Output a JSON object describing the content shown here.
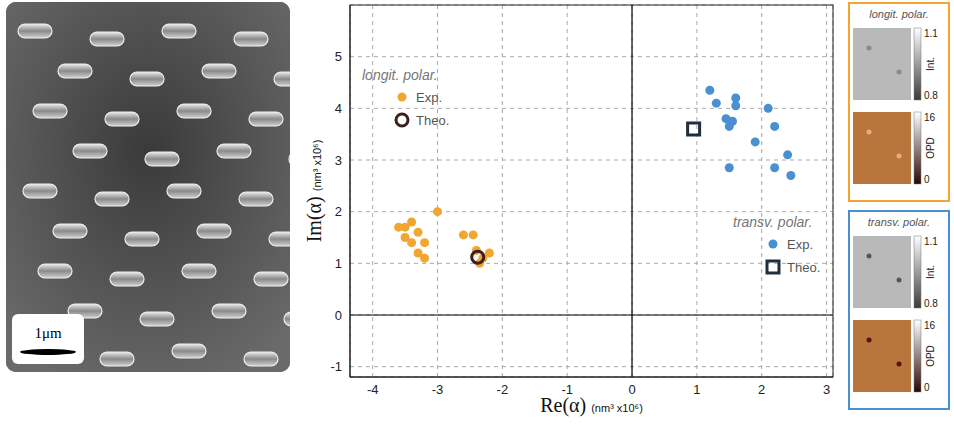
{
  "chart_data": {
    "type": "scatter",
    "x_label": "Re(α)",
    "x_unit": "(nm³ x10⁶)",
    "y_label": "Im(α)",
    "y_unit": "(nm³ x10⁶)",
    "xlim": [
      -4.35,
      3.1
    ],
    "xticks": [
      -4,
      -3,
      -2,
      -1,
      0,
      1,
      2,
      3
    ],
    "ylim": [
      -1.2,
      6
    ],
    "yticks": [
      -1,
      0,
      1,
      2,
      3,
      4,
      5
    ],
    "grid": true,
    "reference_lines": {
      "x": 0,
      "y": 0
    },
    "groups": [
      {
        "name": "longit. polar.",
        "legend": "upper left"
      },
      {
        "name": "transv. polar.",
        "legend": "lower right"
      }
    ],
    "series": [
      {
        "name": "Exp.",
        "group": "longit. polar.",
        "color": "#f0a630",
        "marker": "circle",
        "x": [
          -3.6,
          -3.5,
          -3.4,
          -3.3,
          -3.5,
          -3.4,
          -3.2,
          -3.3,
          -3.2,
          -3.0,
          -2.6,
          -2.45,
          -2.4,
          -2.2,
          -2.3,
          -2.35
        ],
        "y": [
          1.7,
          1.7,
          1.8,
          1.6,
          1.5,
          1.4,
          1.4,
          1.2,
          1.1,
          2.0,
          1.55,
          1.55,
          1.25,
          1.2,
          1.1,
          1.0
        ]
      },
      {
        "name": "Theo.",
        "group": "longit. polar.",
        "color": "#3b1f1c",
        "marker": "open_circle",
        "x": [
          -2.38
        ],
        "y": [
          1.12
        ]
      },
      {
        "name": "Exp.",
        "group": "transv. polar.",
        "color": "#4a90d0",
        "marker": "circle",
        "x": [
          1.2,
          1.3,
          1.6,
          1.6,
          1.45,
          1.55,
          1.5,
          2.1,
          2.2,
          1.9,
          1.5,
          2.2,
          2.4,
          2.45
        ],
        "y": [
          4.35,
          4.1,
          4.2,
          4.05,
          3.8,
          3.75,
          3.65,
          4.0,
          3.65,
          3.35,
          2.85,
          2.85,
          3.1,
          2.7
        ]
      },
      {
        "name": "Theo.",
        "group": "transv. polar.",
        "color": "#1f2f3f",
        "marker": "open_square",
        "x": [
          0.95
        ],
        "y": [
          3.6
        ]
      }
    ]
  },
  "sem_image": {
    "scale_bar": "1μm"
  },
  "insets": [
    {
      "title": "longit. polar.",
      "color": "#f0a630",
      "maps": [
        {
          "label": "Int.",
          "range": [
            0.8,
            1.1
          ],
          "ticks": [
            0.8,
            1.1
          ]
        },
        {
          "label": "OPD",
          "range": [
            0,
            16
          ],
          "ticks": [
            0,
            16
          ]
        }
      ]
    },
    {
      "title": "transv. polar.",
      "color": "#4a90d0",
      "maps": [
        {
          "label": "Int.",
          "range": [
            0.8,
            1.1
          ],
          "ticks": [
            0.8,
            1.1
          ]
        },
        {
          "label": "OPD",
          "range": [
            0,
            16
          ],
          "ticks": [
            0,
            16
          ]
        }
      ]
    }
  ]
}
